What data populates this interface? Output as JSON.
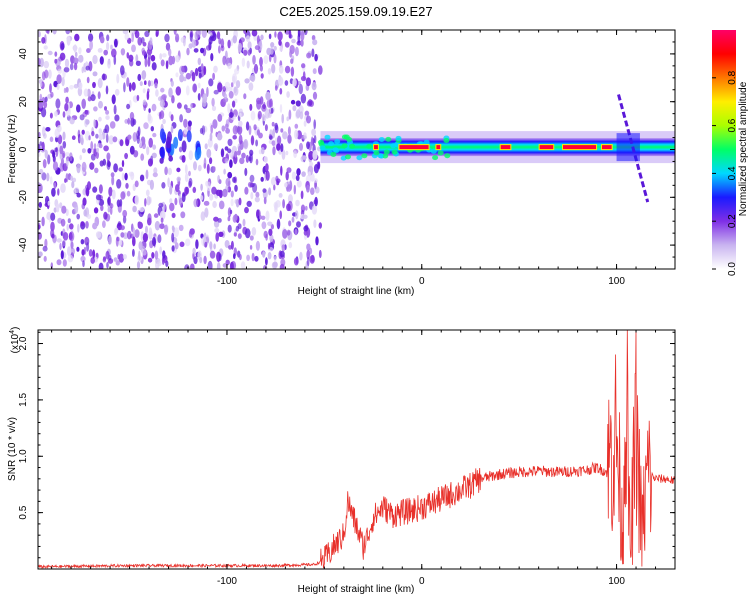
{
  "title": "C2E5.2025.159.09.19.E27",
  "spectrogram": {
    "type": "heatmap",
    "xlabel": "Height of straight line (km)",
    "ylabel": "Frequency (Hz)",
    "xlim": [
      -197,
      130
    ],
    "ylim": [
      -50,
      50
    ],
    "xticks": [
      {
        "v": -100,
        "label": "-100"
      },
      {
        "v": 0,
        "label": "0"
      },
      {
        "v": 100,
        "label": "100"
      }
    ],
    "yticks": [
      {
        "v": -40,
        "label": "-40"
      },
      {
        "v": -20,
        "label": "-20"
      },
      {
        "v": 0,
        "label": "0"
      },
      {
        "v": 20,
        "label": "20"
      },
      {
        "v": 40,
        "label": "40"
      }
    ],
    "noise_region_x": [
      -197,
      -52
    ],
    "hot_spot": {
      "x": -124,
      "y": 1
    },
    "carrier_line": {
      "x": [
        -52,
        130
      ],
      "y": 1
    },
    "spread_feature": {
      "x1": 101,
      "y1": 23,
      "x2": 116,
      "y2": -22
    }
  },
  "colorbar": {
    "label": "Normalized spectral amplitude",
    "range": [
      0,
      1
    ],
    "ticks": [
      {
        "v": 0.0,
        "label": "0.0"
      },
      {
        "v": 0.2,
        "label": "0.2"
      },
      {
        "v": 0.4,
        "label": "0.4"
      },
      {
        "v": 0.6,
        "label": "0.6"
      },
      {
        "v": 0.8,
        "label": "0.8"
      }
    ],
    "colors": [
      "#ffffff",
      "#c9b4f0",
      "#7f2fe6",
      "#1a1aff",
      "#00d8ff",
      "#00ff66",
      "#aaff00",
      "#ffee00",
      "#ff7700",
      "#ff0000",
      "#ff0066"
    ]
  },
  "chart_data": {
    "type": "line",
    "title": "C2E5.2025.159.09.19.E27",
    "xlabel": "Height of straight line (km)",
    "ylabel": "SNR (10 * v/v)",
    "scale_label": "(x10",
    "scale_exp": "4",
    "xlim": [
      -197,
      130
    ],
    "ylim": [
      0,
      2.12
    ],
    "xticks": [
      {
        "v": -100,
        "label": "-100"
      },
      {
        "v": 0,
        "label": "0"
      },
      {
        "v": 100,
        "label": "100"
      }
    ],
    "yticks": [
      {
        "v": 0.5,
        "label": "0.5"
      },
      {
        "v": 1.0,
        "label": "1.0"
      },
      {
        "v": 1.5,
        "label": "1.5"
      },
      {
        "v": 2.0,
        "label": "2.0"
      }
    ],
    "color": "#e8302a",
    "series": [
      {
        "x": [
          -197,
          -150,
          -120,
          -100,
          -75,
          -55,
          -50,
          -45,
          -40,
          -38,
          -35,
          -30,
          -28,
          -25,
          -20,
          -15,
          -10,
          -5,
          0,
          5,
          10,
          15,
          20,
          25,
          30,
          40,
          50,
          60,
          70,
          80,
          85,
          90,
          95,
          100,
          103,
          105,
          107,
          110,
          113,
          116,
          120,
          125,
          130
        ],
        "values": [
          0.02,
          0.03,
          0.03,
          0.03,
          0.03,
          0.04,
          0.08,
          0.2,
          0.3,
          0.6,
          0.45,
          0.2,
          0.28,
          0.45,
          0.55,
          0.48,
          0.5,
          0.52,
          0.55,
          0.58,
          0.62,
          0.66,
          0.7,
          0.74,
          0.8,
          0.84,
          0.86,
          0.87,
          0.86,
          0.87,
          0.88,
          0.9,
          0.86,
          1.2,
          0.3,
          1.7,
          0.1,
          1.3,
          0.3,
          0.85,
          0.8,
          0.8,
          0.78
        ]
      }
    ]
  }
}
